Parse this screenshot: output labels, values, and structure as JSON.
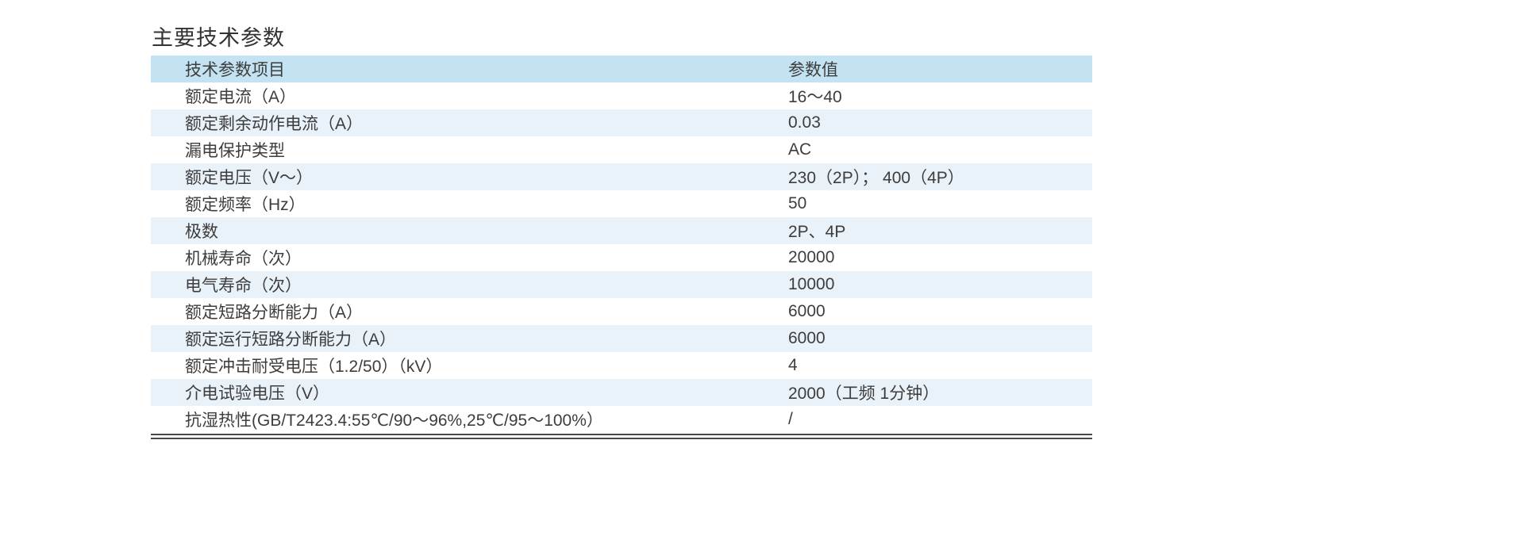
{
  "title": "主要技术参数",
  "table": {
    "columns": [
      "技术参数项目",
      "参数值"
    ],
    "rows": [
      [
        "额定电流（A）",
        "16～40"
      ],
      [
        "额定剩余动作电流（A）",
        "0.03"
      ],
      [
        "漏电保护类型",
        "AC"
      ],
      [
        "额定电压（V～）",
        "230（2P）； 400（4P）"
      ],
      [
        "额定频率（Hz）",
        "50"
      ],
      [
        "极数",
        "2P、4P"
      ],
      [
        "机械寿命（次）",
        "20000"
      ],
      [
        "电气寿命（次）",
        "10000"
      ],
      [
        "额定短路分断能力（A）",
        "6000"
      ],
      [
        "额定运行短路分断能力（A）",
        "6000"
      ],
      [
        "额定冲击耐受电压（1.2/50）（kV）",
        "4"
      ],
      [
        "介电试验电压（V）",
        "2000（工频 1分钟）"
      ],
      [
        "抗湿热性(GB/T2423.4:55℃/90～96%,25℃/95～100%）",
        "/"
      ]
    ]
  },
  "colors": {
    "header_bg": "#c3e2f2",
    "alt_row_bg": "#e9f1f9",
    "text": "#3d3d3d"
  }
}
